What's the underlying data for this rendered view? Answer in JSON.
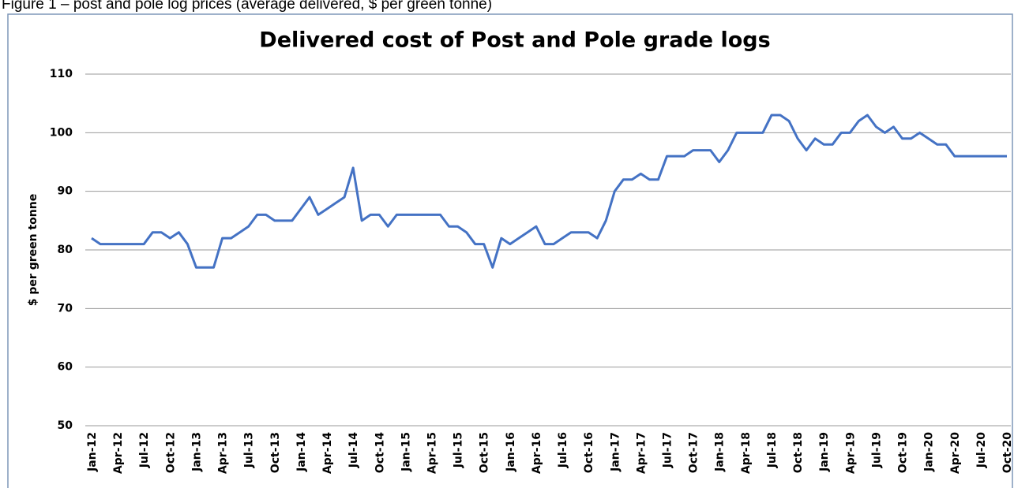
{
  "caption": "Figure 1 – post and pole log prices (average delivered, $ per green tonne)",
  "chart_data": {
    "type": "line",
    "title": "Delivered cost of Post and Pole grade logs",
    "ylabel": "$ per green tonne",
    "categories": [
      "Jan-12",
      null,
      null,
      "Apr-12",
      null,
      null,
      "Jul-12",
      null,
      null,
      "Oct-12",
      null,
      null,
      "Jan-13",
      null,
      null,
      "Apr-13",
      null,
      null,
      "Jul-13",
      null,
      null,
      "Oct-13",
      null,
      null,
      "Jan-14",
      null,
      null,
      "Apr-14",
      null,
      null,
      "Jul-14",
      null,
      null,
      "Oct-14",
      null,
      null,
      "Jan-15",
      null,
      null,
      "Apr-15",
      null,
      null,
      "Jul-15",
      null,
      null,
      "Oct-15",
      null,
      null,
      "Jan-16",
      null,
      null,
      "Apr-16",
      null,
      null,
      "Jul-16",
      null,
      null,
      "Oct-16",
      null,
      null,
      "Jan-17",
      null,
      null,
      "Apr-17",
      null,
      null,
      "Jul-17",
      null,
      null,
      "Oct-17",
      null,
      null,
      "Jan-18",
      null,
      null,
      "Apr-18",
      null,
      null,
      "Jul-18",
      null,
      null,
      "Oct-18",
      null,
      null,
      "Jan-19",
      null,
      null,
      "Apr-19",
      null,
      null,
      "Jul-19",
      null,
      null,
      "Oct-19",
      null,
      null,
      "Jan-20",
      null,
      null,
      "Apr-20",
      null,
      null,
      "Jul-20",
      null,
      null,
      "Oct-20"
    ],
    "series": [
      {
        "color": "#4472c4",
        "values": [
          82,
          81,
          81,
          81,
          81,
          81,
          81,
          83,
          83,
          82,
          83,
          81,
          77,
          77,
          77,
          82,
          82,
          83,
          84,
          86,
          86,
          85,
          85,
          85,
          87,
          89,
          86,
          87,
          88,
          89,
          94,
          85,
          86,
          86,
          84,
          86,
          86,
          86,
          86,
          86,
          86,
          84,
          84,
          83,
          81,
          81,
          77,
          82,
          81,
          82,
          83,
          84,
          81,
          81,
          82,
          83,
          83,
          83,
          82,
          85,
          90,
          92,
          92,
          93,
          92,
          92,
          96,
          96,
          96,
          97,
          97,
          97,
          95,
          97,
          100,
          100,
          100,
          100,
          103,
          103,
          102,
          99,
          97,
          99,
          98,
          98,
          100,
          100,
          102,
          103,
          101,
          100,
          101,
          99,
          99,
          100,
          99,
          98,
          98,
          96,
          96,
          96,
          96,
          96,
          96,
          96
        ]
      }
    ],
    "ylim": [
      50,
      110
    ],
    "yticks": [
      50,
      60,
      70,
      80,
      90,
      100,
      110
    ],
    "grid": true
  }
}
